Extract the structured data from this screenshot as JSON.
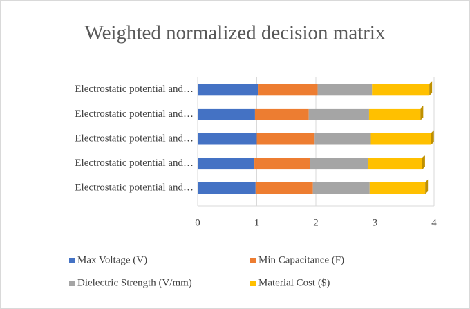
{
  "chart_data": {
    "type": "bar",
    "orientation": "horizontal",
    "stacked": true,
    "title": "Weighted normalized decision matrix",
    "categories": [
      "Electrostatic potential and…",
      "Electrostatic potential and…",
      "Electrostatic potential and…",
      "Electrostatic potential and…",
      "Electrostatic potential and…"
    ],
    "series": [
      {
        "name": "Max Voltage (V)",
        "color": "#4472c4",
        "values": [
          1.03,
          0.97,
          1.0,
          0.96,
          0.98
        ]
      },
      {
        "name": "Min Capacitance (F)",
        "color": "#ed7d31",
        "values": [
          1.0,
          0.91,
          0.98,
          0.94,
          0.97
        ]
      },
      {
        "name": "Dielectric Strength (V/mm)",
        "color": "#a5a5a5",
        "values": [
          0.92,
          1.02,
          0.95,
          0.98,
          0.96
        ]
      },
      {
        "name": "Material Cost ($)",
        "color": "#ffc000",
        "values": [
          0.97,
          0.87,
          1.02,
          0.92,
          0.94
        ]
      }
    ],
    "xlim": [
      0,
      4
    ],
    "xticks": [
      0,
      1,
      2,
      3,
      4
    ],
    "grid": true,
    "legend": "bottom"
  }
}
